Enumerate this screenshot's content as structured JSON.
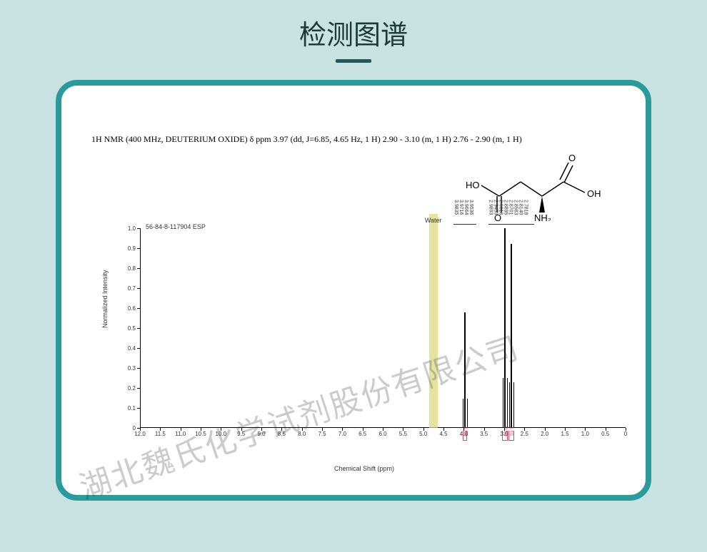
{
  "page": {
    "title": "检测图谱",
    "background_color": "#c7e2e0",
    "panel_border_color": "#2a9a9a",
    "panel_bg": "#ffffff"
  },
  "nmr": {
    "description": "1H NMR (400 MHz, DEUTERIUM OXIDE) δ ppm 3.97 (dd, J=6.85, 4.65 Hz, 1 H) 2.90 - 3.10 (m, 1 H) 2.76 - 2.90 (m, 1 H)",
    "esp_label": "56-84-8-117904 ESP",
    "water_label": "Water"
  },
  "molecule": {
    "atoms": {
      "ho_left": "HO",
      "o_top_left": "O",
      "o_bottom_mid": "O",
      "o_top_right": "O",
      "oh_right": "OH",
      "nh2": "NH₂"
    }
  },
  "chart": {
    "y_label": "Normalized Intensity",
    "x_label": "Chemical Shift (ppm)",
    "x_min": 0,
    "x_max": 12.0,
    "x_ticks": [
      "12.0",
      "11.5",
      "11.0",
      "10.5",
      "10.0",
      "9.5",
      "9.0",
      "8.5",
      "8.0",
      "7.5",
      "7.0",
      "6.5",
      "6.0",
      "5.5",
      "5.0",
      "4.5",
      "4.0",
      "3.5",
      "3.0",
      "2.5",
      "2.0",
      "1.5",
      "1.0",
      "0.5",
      "0"
    ],
    "y_min": 0,
    "y_max": 1.0,
    "y_ticks": [
      "1.0",
      "0.9",
      "0.8",
      "0.7",
      "0.6",
      "0.5",
      "0.4",
      "0.3",
      "0.2",
      "0.1",
      "0"
    ],
    "water_peak": {
      "ppm": 4.75,
      "height_rel": 1.5,
      "band_color": "#d9d978"
    },
    "peaks": [
      {
        "ppm": 3.97,
        "height_rel": 0.58,
        "labels": [
          "3.9835",
          "3.9716",
          "3.9664",
          "3.9536"
        ]
      },
      {
        "ppm": 2.98,
        "height_rel": 1.0
      },
      {
        "ppm": 2.83,
        "height_rel": 0.92,
        "labels": [
          "2.9893",
          "2.9453",
          "2.9018",
          "2.8895",
          "2.8701",
          "2.8583",
          "2.8140",
          "2.7818"
        ]
      }
    ],
    "integrals": [
      {
        "ppm_from": 4.02,
        "ppm_to": 3.92,
        "value": "1.00"
      },
      {
        "ppm_from": 3.05,
        "ppm_to": 2.92,
        "value": "0.99"
      },
      {
        "ppm_from": 2.9,
        "ppm_to": 2.76,
        "value": "1.01"
      }
    ]
  },
  "watermark": {
    "text": "湖北魏氏化学试剂股份有限公司",
    "color": "#333333",
    "opacity": 0.25,
    "rotation_deg": -18
  }
}
